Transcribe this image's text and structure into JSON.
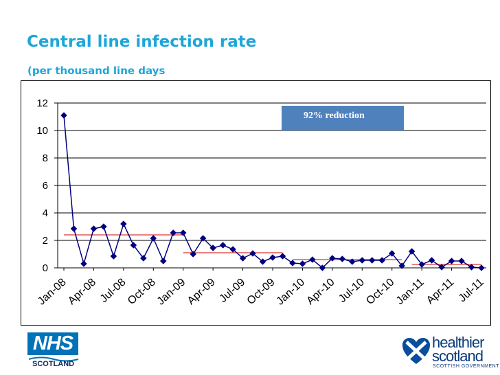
{
  "header": {
    "title": "Central line infection rate",
    "subtitle": "(per thousand line days"
  },
  "logos": {
    "nhs_text": "NHS",
    "nhs_sub": "SCOTLAND",
    "hs_line1": "healthier",
    "hs_line2": "scotland",
    "hs_line3": "SCOTTISH GOVERNMENT"
  },
  "colors": {
    "title": "#1ea6d9",
    "series": "#000080",
    "median": "#e03030",
    "annotation_bg": "#4f81bd",
    "nhs_blue": "#0072b8"
  },
  "chart_data": {
    "type": "line",
    "title": "Central line infection rate",
    "subtitle": "(per thousand line days",
    "xlabel": "",
    "ylabel": "",
    "ylim": [
      0,
      12
    ],
    "yticks": [
      0,
      2,
      4,
      6,
      8,
      10,
      12
    ],
    "x_start": "Jan-08",
    "tick_labels": [
      "Jan-08",
      "Apr-08",
      "Jul-08",
      "Oct-08",
      "Jan-09",
      "Apr-09",
      "Jul-09",
      "Oct-09",
      "Jan-10",
      "Apr-10",
      "Jul-10",
      "Oct-10",
      "Jan-11",
      "Apr-11",
      "Jul-11"
    ],
    "tick_every_months": 3,
    "grid": true,
    "series": [
      {
        "name": "Central line infection rate",
        "marker": "diamond",
        "values": [
          11.1,
          2.85,
          0.3,
          2.85,
          3.0,
          0.85,
          3.2,
          1.65,
          0.7,
          2.15,
          0.5,
          2.55,
          2.55,
          1.0,
          2.15,
          1.45,
          1.65,
          1.35,
          0.7,
          1.05,
          0.45,
          0.75,
          0.85,
          0.35,
          0.3,
          0.6,
          0.0,
          0.7,
          0.65,
          0.45,
          0.55,
          0.55,
          0.55,
          1.05,
          0.15,
          1.2,
          0.25,
          0.55,
          0.05,
          0.5,
          0.5,
          0.05,
          0.0
        ]
      }
    ],
    "median_lines": [
      {
        "start_index": 0,
        "end_index": 12,
        "value": 2.4
      },
      {
        "start_index": 12,
        "end_index": 22,
        "value": 1.1
      },
      {
        "start_index": 23,
        "end_index": 34,
        "value": 0.6
      },
      {
        "start_index": 35,
        "end_index": 42,
        "value": 0.25
      }
    ],
    "annotations": [
      {
        "text": "92% reduction"
      }
    ]
  }
}
